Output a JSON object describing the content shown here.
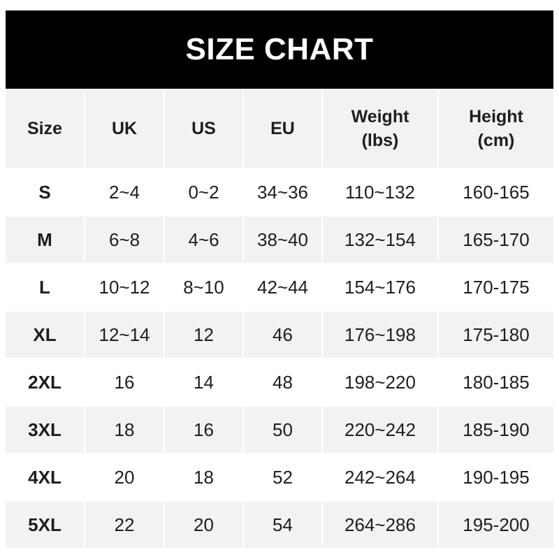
{
  "title": "SIZE CHART",
  "columns": [
    {
      "line1": "Size",
      "line2": ""
    },
    {
      "line1": "UK",
      "line2": ""
    },
    {
      "line1": "US",
      "line2": ""
    },
    {
      "line1": "EU",
      "line2": ""
    },
    {
      "line1": "Weight",
      "line2": "(lbs)"
    },
    {
      "line1": "Height",
      "line2": "(cm)"
    }
  ],
  "rows": [
    [
      "S",
      "2~4",
      "0~2",
      "34~36",
      "110~132",
      "160-165"
    ],
    [
      "M",
      "6~8",
      "4~6",
      "38~40",
      "132~154",
      "165-170"
    ],
    [
      "L",
      "10~12",
      "8~10",
      "42~44",
      "154~176",
      "170-175"
    ],
    [
      "XL",
      "12~14",
      "12",
      "46",
      "176~198",
      "175-180"
    ],
    [
      "2XL",
      "16",
      "14",
      "48",
      "198~220",
      "180-185"
    ],
    [
      "3XL",
      "18",
      "16",
      "50",
      "220~242",
      "185-190"
    ],
    [
      "4XL",
      "20",
      "18",
      "52",
      "242~264",
      "190-195"
    ],
    [
      "5XL",
      "22",
      "20",
      "54",
      "264~286",
      "195-200"
    ]
  ],
  "colors": {
    "banner": "#000000",
    "stripe": "#f2f2f2",
    "text": "#1e1e1e"
  }
}
